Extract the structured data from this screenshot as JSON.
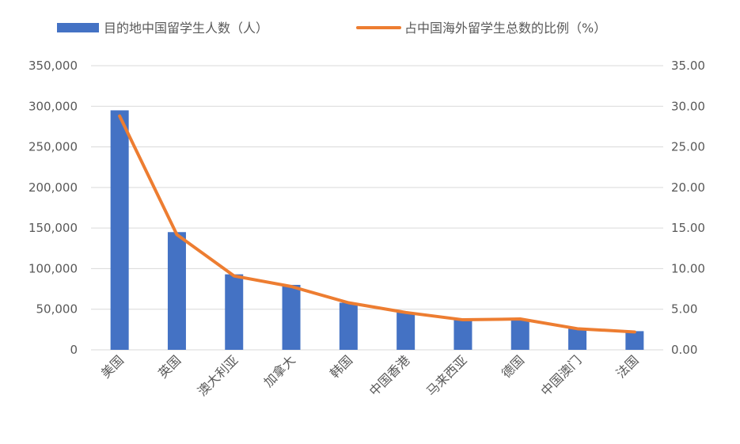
{
  "chart_data": {
    "type": "bar",
    "title": "",
    "categories": [
      "美国",
      "英国",
      "澳大利亚",
      "加拿大",
      "韩国",
      "中国香港",
      "马来西亚",
      "德国",
      "中国澳门",
      "法国"
    ],
    "series": [
      {
        "name": "目的地中国留学生人数（人）",
        "type": "bar",
        "axis": "left",
        "color": "#4472c4",
        "values": [
          295000,
          145000,
          93000,
          80000,
          58000,
          46000,
          38000,
          38000,
          26000,
          23000
        ]
      },
      {
        "name": "占中国海外留学生总数的比例（%）",
        "type": "line",
        "axis": "right",
        "color": "#ed7d31",
        "values": [
          28.8,
          14.2,
          9.1,
          7.8,
          5.8,
          4.6,
          3.7,
          3.8,
          2.6,
          2.2
        ]
      }
    ],
    "y_left": {
      "min": 0,
      "max": 350000,
      "ticks": [
        0,
        50000,
        100000,
        150000,
        200000,
        250000,
        300000,
        350000
      ],
      "tick_labels": [
        "0",
        "50,000",
        "100,000",
        "150,000",
        "200,000",
        "250,000",
        "300,000",
        "350,000"
      ]
    },
    "y_right": {
      "min": 0,
      "max": 35,
      "ticks": [
        0,
        5,
        10,
        15,
        20,
        25,
        30,
        35
      ],
      "tick_labels": [
        "0.00",
        "5.00",
        "10.00",
        "15.00",
        "20.00",
        "25.00",
        "30.00",
        "35.00"
      ]
    },
    "grid": true,
    "legend_position": "top"
  }
}
